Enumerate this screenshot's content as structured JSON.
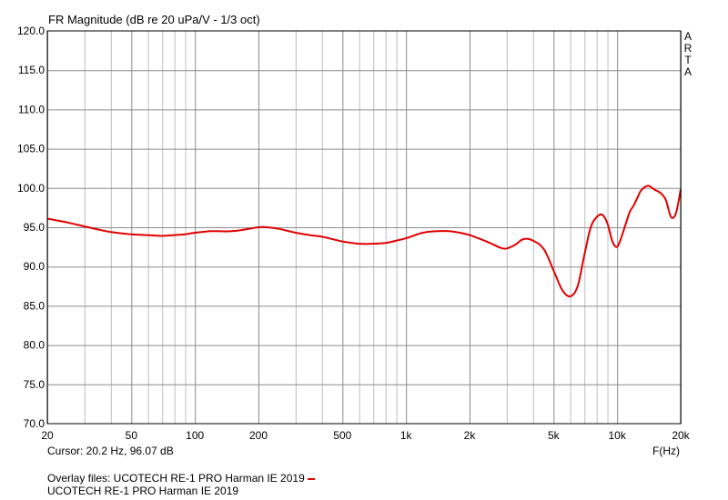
{
  "chart_data": {
    "type": "line",
    "title": "FR Magnitude (dB re 20 uPa/V - 1/3 oct)",
    "xlabel": "F(Hz)",
    "ylabel": "",
    "x_scale": "log",
    "xlim": [
      20,
      20000
    ],
    "ylim": [
      70,
      120
    ],
    "grid": true,
    "watermark": "ARTA",
    "x_ticks": [
      {
        "value": 20,
        "label": "20"
      },
      {
        "value": 50,
        "label": "50"
      },
      {
        "value": 100,
        "label": "100"
      },
      {
        "value": 200,
        "label": "200"
      },
      {
        "value": 500,
        "label": "500"
      },
      {
        "value": 1000,
        "label": "1k"
      },
      {
        "value": 2000,
        "label": "2k"
      },
      {
        "value": 5000,
        "label": "5k"
      },
      {
        "value": 10000,
        "label": "10k"
      },
      {
        "value": 20000,
        "label": "20k"
      }
    ],
    "y_ticks": [
      "70.0",
      "75.0",
      "80.0",
      "85.0",
      "90.0",
      "95.0",
      "100.0",
      "105.0",
      "110.0",
      "115.0",
      "120.0"
    ],
    "series": [
      {
        "name": "UCOTECH RE-1 PRO Harman IE 2019",
        "color": "#e00000",
        "x": [
          20,
          25,
          30,
          35,
          40,
          50,
          60,
          70,
          80,
          90,
          100,
          120,
          150,
          180,
          200,
          220,
          250,
          300,
          350,
          400,
          500,
          600,
          700,
          800,
          900,
          1000,
          1200,
          1400,
          1600,
          1800,
          2000,
          2200,
          2500,
          2800,
          3000,
          3300,
          3600,
          4000,
          4500,
          5000,
          5500,
          6000,
          6500,
          7000,
          7500,
          8000,
          8500,
          9000,
          9500,
          10000,
          10500,
          11000,
          11500,
          12000,
          12500,
          13000,
          14000,
          15000,
          16000,
          17000,
          18000,
          19000,
          20000
        ],
        "y": [
          96.1,
          95.6,
          95.1,
          94.7,
          94.4,
          94.1,
          94.0,
          93.9,
          94.0,
          94.1,
          94.3,
          94.5,
          94.5,
          94.8,
          95.0,
          95.0,
          94.8,
          94.3,
          94.0,
          93.8,
          93.2,
          92.9,
          92.9,
          93.0,
          93.3,
          93.6,
          94.3,
          94.5,
          94.5,
          94.3,
          94.0,
          93.6,
          93.0,
          92.4,
          92.3,
          92.8,
          93.5,
          93.3,
          92.2,
          89.5,
          87.0,
          86.2,
          87.5,
          91.5,
          95.0,
          96.3,
          96.6,
          95.5,
          93.2,
          92.5,
          93.8,
          95.5,
          97.0,
          97.8,
          98.8,
          99.7,
          100.3,
          99.8,
          99.4,
          98.5,
          96.3,
          96.8,
          99.8
        ]
      }
    ]
  },
  "readout": {
    "cursor": "Cursor: 20.2 Hz, 96.07 dB",
    "overlay_prefix": "Overlay files: UCOTECH RE-1 PRO Harman IE 2019",
    "series_line": "UCOTECH RE-1 PRO Harman IE 2019"
  }
}
